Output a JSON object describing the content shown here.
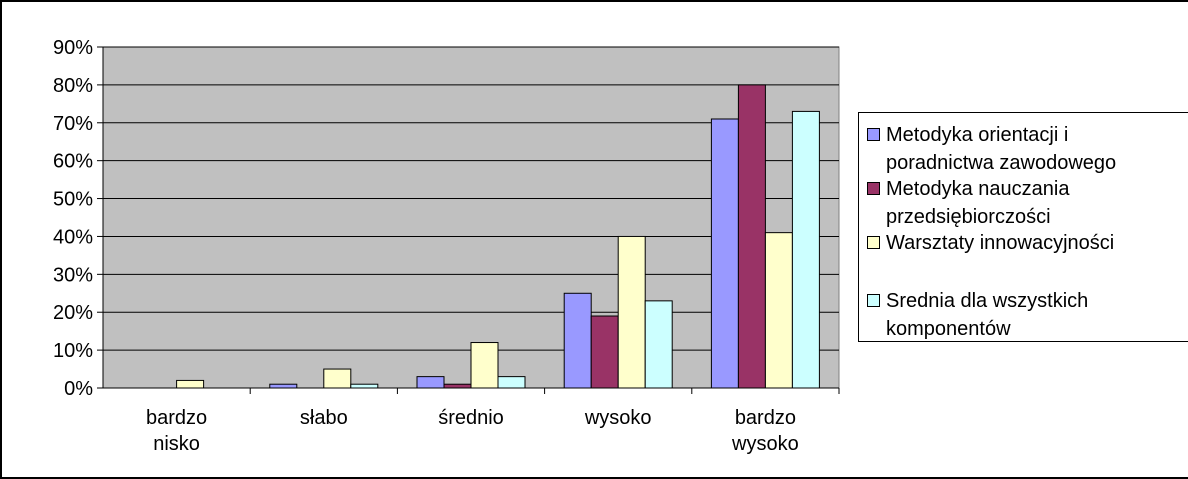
{
  "chart_data": {
    "type": "bar",
    "categories": [
      "bardzo\nnisko",
      "słabo",
      "średnio",
      "wysoko",
      "bardzo\nwysoko"
    ],
    "series": [
      {
        "name": "Metodyka orientacji i\nporadnictwa zawodowego",
        "color": "#9999ff",
        "values": [
          0,
          1,
          3,
          25,
          71
        ]
      },
      {
        "name": "Metodyka nauczania\nprzedsiębiorczości",
        "color": "#993366",
        "values": [
          0,
          0,
          1,
          19,
          80
        ]
      },
      {
        "name": "Warsztaty innowacyjności",
        "color": "#ffffcc",
        "values": [
          2,
          5,
          12,
          40,
          41
        ]
      },
      {
        "name": "Srednia dla wszystkich\nkomponentów",
        "color": "#ccffff",
        "values": [
          0,
          1,
          3,
          23,
          73
        ]
      }
    ],
    "yticks": [
      "0%",
      "10%",
      "20%",
      "30%",
      "40%",
      "50%",
      "60%",
      "70%",
      "80%",
      "90%"
    ],
    "ylim": [
      0,
      90
    ],
    "grid": true,
    "plot_background": "#c0c0c0",
    "legend_position": "right",
    "title": "",
    "xlabel": "",
    "ylabel": ""
  }
}
